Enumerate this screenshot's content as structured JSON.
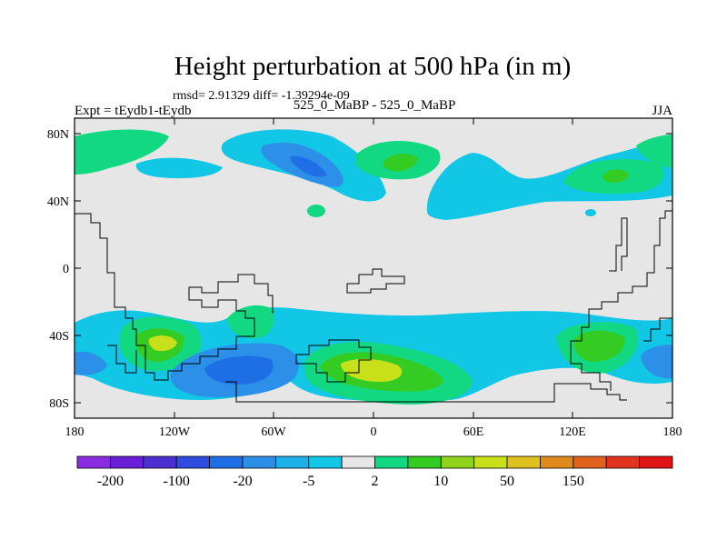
{
  "title": "Height perturbation at 500 hPa (in m)",
  "stats": "rmsd= 2.91329 diff= -1.39294e-09",
  "left_label": "Expt = tEydb1-tEydb",
  "center_label": "525_0_MaBP - 525_0_MaBP",
  "right_label": "JJA",
  "lat_ticks": [
    "80N",
    "40N",
    "0",
    "40S",
    "80S"
  ],
  "lon_ticks": [
    "180",
    "120W",
    "60W",
    "0",
    "60E",
    "120E",
    "180"
  ],
  "colorbar": {
    "colors": [
      "#8a2be2",
      "#6a1fd6",
      "#4b2fd0",
      "#2f4be0",
      "#1e6ee6",
      "#2d90e8",
      "#1eb0e8",
      "#12c6e6",
      "#e6e6e6",
      "#12d882",
      "#34cc22",
      "#8fd31a",
      "#c8e01a",
      "#e0c21e",
      "#e08a1e",
      "#e0621e",
      "#e0341e",
      "#e01414"
    ],
    "labels": [
      "-200",
      "-100",
      "-20",
      "-5",
      "2",
      "10",
      "50",
      "150"
    ]
  },
  "colors": {
    "background": "#e6e6e6",
    "cyan": "#12c6e6",
    "blue_light": "#2d90e8",
    "blue_mid": "#1e6ee6",
    "green": "#12d882",
    "green_dark": "#34cc22",
    "yellow_green": "#c8e01a"
  }
}
